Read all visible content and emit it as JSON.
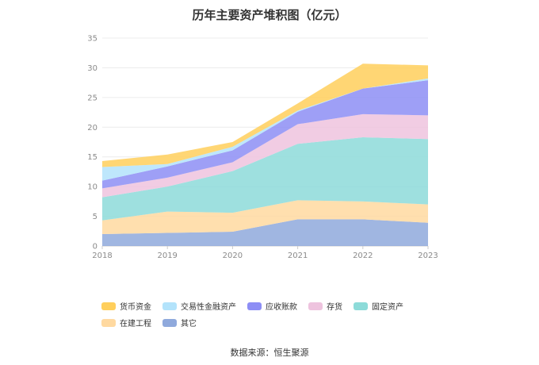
{
  "chart_data": {
    "type": "area",
    "stacked": true,
    "title": "历年主要资产堆积图（亿元）",
    "x": [
      "2018",
      "2019",
      "2020",
      "2021",
      "2022",
      "2023"
    ],
    "ylim": [
      0,
      35
    ],
    "yticks": [
      "0",
      "5",
      "10",
      "15",
      "20",
      "25",
      "30",
      "35"
    ],
    "grid": true,
    "legend_position": "bottom",
    "series": [
      {
        "name": "其它",
        "color": "#8fa9dc",
        "values": [
          2.0,
          2.2,
          2.4,
          4.5,
          4.5,
          3.9
        ]
      },
      {
        "name": "在建工程",
        "color": "#ffd9a0",
        "values": [
          2.3,
          3.6,
          3.2,
          3.2,
          3.0,
          3.1
        ]
      },
      {
        "name": "固定资产",
        "color": "#8ddbd9",
        "values": [
          3.9,
          4.2,
          7.0,
          9.5,
          10.8,
          11.0
        ]
      },
      {
        "name": "存货",
        "color": "#eec3de",
        "values": [
          1.5,
          1.5,
          1.5,
          3.3,
          3.9,
          4.0
        ]
      },
      {
        "name": "应收账款",
        "color": "#8d8ef5",
        "values": [
          1.3,
          1.9,
          2.0,
          2.1,
          4.3,
          5.9
        ]
      },
      {
        "name": "交易性金融资产",
        "color": "#b3e3fb",
        "values": [
          2.3,
          0.4,
          0.6,
          0.2,
          0.0,
          0.3
        ]
      },
      {
        "name": "货币资金",
        "color": "#ffcf5c",
        "values": [
          1.0,
          1.6,
          0.8,
          1.2,
          4.2,
          2.2
        ]
      }
    ]
  },
  "legend_order": [
    "货币资金",
    "交易性金融资产",
    "应收账款",
    "存货",
    "固定资产",
    "在建工程",
    "其它"
  ],
  "source_text": "数据来源：恒生聚源"
}
